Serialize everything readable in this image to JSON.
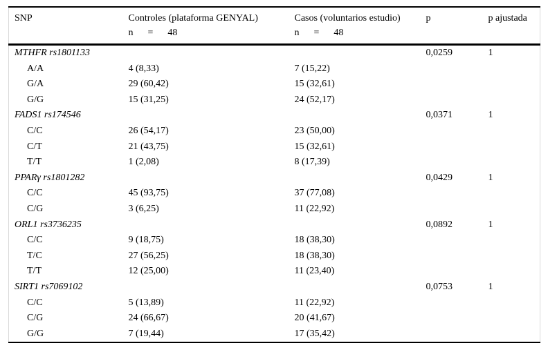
{
  "page": {
    "background": "#ffffff",
    "text_color": "#000000",
    "rule_color": "#000000",
    "edge_artifact_color": "#d9d9d9"
  },
  "table": {
    "header": {
      "snp": "SNP",
      "controls_title": "Controles (plataforma GENYAL)",
      "controls_n": "n      =      48",
      "cases_title": "Casos (voluntarios estudio)",
      "cases_n": "n      =      48",
      "p": "p",
      "p_adjusted": "p ajustada"
    },
    "sections": [
      {
        "gene": "MTHFR rs1801133",
        "p": "0,0259",
        "p_adjusted": "1",
        "genotypes": [
          {
            "genotype": "A/A",
            "controls": "4 (8,33)",
            "cases": "7 (15,22)"
          },
          {
            "genotype": "G/A",
            "controls": "29 (60,42)",
            "cases": "15 (32,61)"
          },
          {
            "genotype": "G/G",
            "controls": "15 (31,25)",
            "cases": "24 (52,17)"
          }
        ]
      },
      {
        "gene": "FADS1 rs174546",
        "p": "0,0371",
        "p_adjusted": "1",
        "genotypes": [
          {
            "genotype": "C/C",
            "controls": "26 (54,17)",
            "cases": "23 (50,00)"
          },
          {
            "genotype": "C/T",
            "controls": "21 (43,75)",
            "cases": "15 (32,61)"
          },
          {
            "genotype": "T/T",
            "controls": "1 (2,08)",
            "cases": "8 (17,39)"
          }
        ]
      },
      {
        "gene": "PPARγ rs1801282",
        "p": "0,0429",
        "p_adjusted": "1",
        "genotypes": [
          {
            "genotype": "C/C",
            "controls": "45 (93,75)",
            "cases": "37 (77,08)"
          },
          {
            "genotype": "C/G",
            "controls": "3 (6,25)",
            "cases": "11 (22,92)"
          }
        ]
      },
      {
        "gene": "ORL1 rs3736235",
        "p": "0,0892",
        "p_adjusted": "1",
        "genotypes": [
          {
            "genotype": "C/C",
            "controls": "9 (18,75)",
            "cases": "18 (38,30)"
          },
          {
            "genotype": "T/C",
            "controls": "27 (56,25)",
            "cases": "18 (38,30)"
          },
          {
            "genotype": "T/T",
            "controls": "12 (25,00)",
            "cases": "11 (23,40)"
          }
        ]
      },
      {
        "gene": "SIRT1 rs7069102",
        "p": "0,0753",
        "p_adjusted": "1",
        "genotypes": [
          {
            "genotype": "C/C",
            "controls": "5 (13,89)",
            "cases": "11 (22,92)"
          },
          {
            "genotype": "C/G",
            "controls": "24 (66,67)",
            "cases": "20 (41,67)"
          },
          {
            "genotype": "G/G",
            "controls": "7 (19,44)",
            "cases": "17 (35,42)"
          }
        ]
      }
    ]
  }
}
